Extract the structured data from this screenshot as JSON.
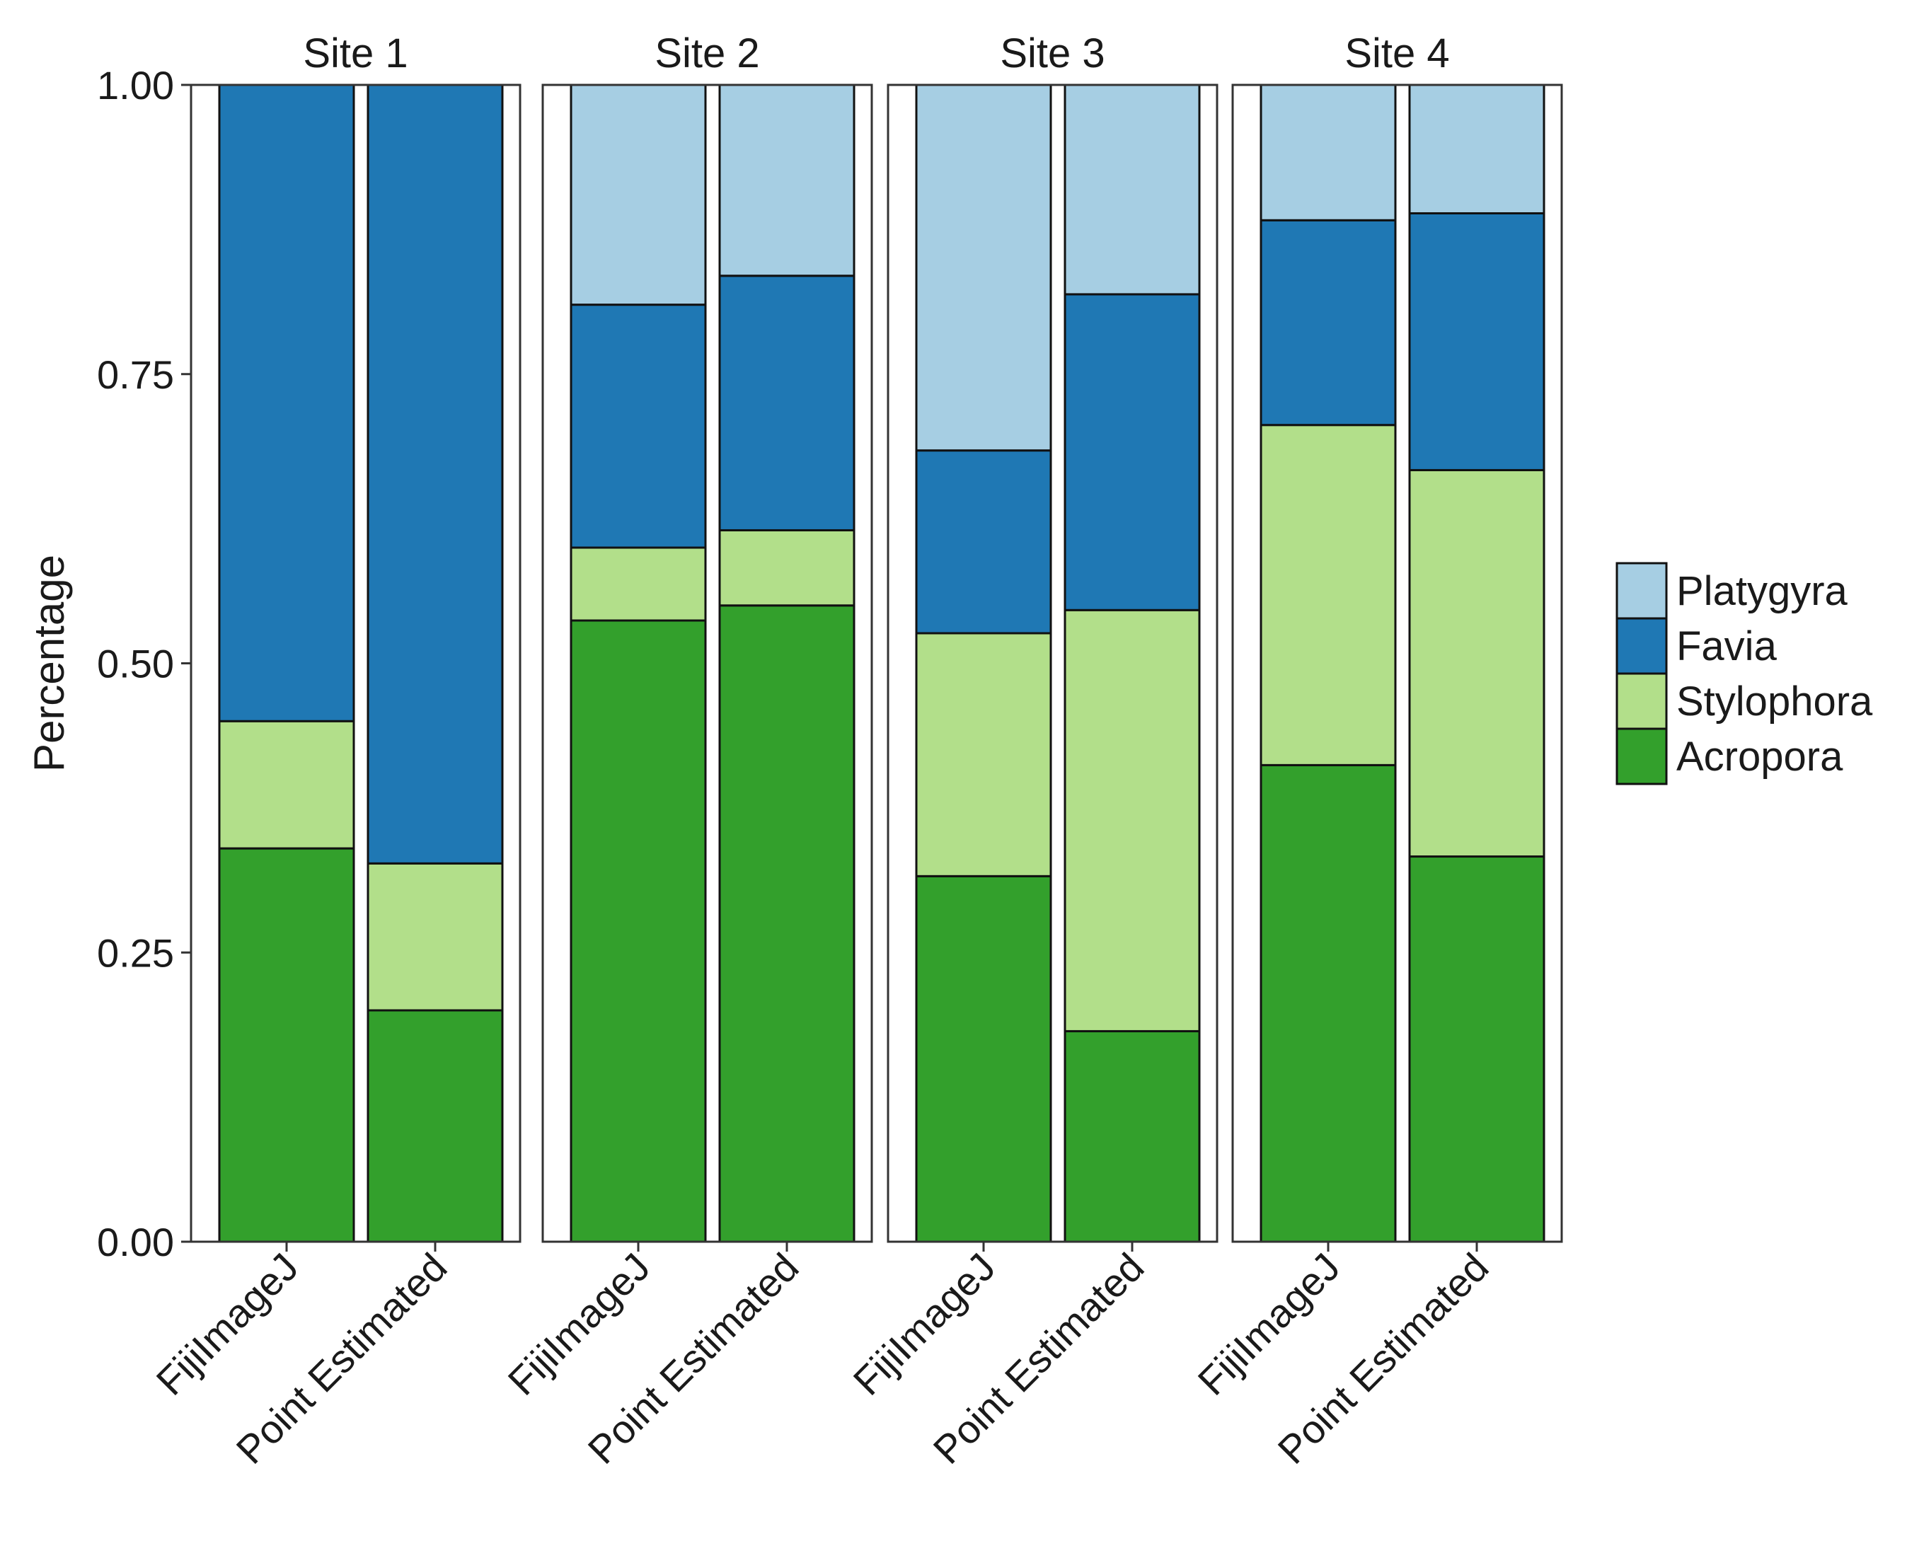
{
  "chart_data": {
    "type": "bar",
    "stacked": true,
    "faceted": true,
    "ylabel": "Percentage",
    "ylim": [
      0,
      1
    ],
    "yticks": [
      "0.00",
      "0.25",
      "0.50",
      "0.75",
      "1.00"
    ],
    "ytick_values": [
      0,
      0.25,
      0.5,
      0.75,
      1.0
    ],
    "categories": [
      "FijiImageJ",
      "Point Estimated"
    ],
    "facets": [
      {
        "label": "Site 1",
        "bars": [
          {
            "category": "FijiImageJ",
            "Acropora": 0.34,
            "Stylophora": 0.11,
            "Favia": 0.55,
            "Platygyra": 0.0
          },
          {
            "category": "Point Estimated",
            "Acropora": 0.2,
            "Stylophora": 0.127,
            "Favia": 0.673,
            "Platygyra": 0.0
          }
        ]
      },
      {
        "label": "Site 2",
        "bars": [
          {
            "category": "FijiImageJ",
            "Acropora": 0.537,
            "Stylophora": 0.063,
            "Favia": 0.21,
            "Platygyra": 0.19
          },
          {
            "category": "Point Estimated",
            "Acropora": 0.55,
            "Stylophora": 0.065,
            "Favia": 0.22,
            "Platygyra": 0.165
          }
        ]
      },
      {
        "label": "Site 3",
        "bars": [
          {
            "category": "FijiImageJ",
            "Acropora": 0.316,
            "Stylophora": 0.21,
            "Favia": 0.158,
            "Platygyra": 0.316
          },
          {
            "category": "Point Estimated",
            "Acropora": 0.182,
            "Stylophora": 0.364,
            "Favia": 0.273,
            "Platygyra": 0.181
          }
        ]
      },
      {
        "label": "Site 4",
        "bars": [
          {
            "category": "FijiImageJ",
            "Acropora": 0.412,
            "Stylophora": 0.294,
            "Favia": 0.177,
            "Platygyra": 0.117
          },
          {
            "category": "Point Estimated",
            "Acropora": 0.333,
            "Stylophora": 0.334,
            "Favia": 0.222,
            "Platygyra": 0.111
          }
        ]
      }
    ],
    "series": [
      {
        "name": "Acropora",
        "color": "#33a02c"
      },
      {
        "name": "Stylophora",
        "color": "#b2df8a"
      },
      {
        "name": "Favia",
        "color": "#1f78b4"
      },
      {
        "name": "Platygyra",
        "color": "#a6cee3"
      }
    ],
    "legend_order": [
      "Platygyra",
      "Favia",
      "Stylophora",
      "Acropora"
    ],
    "legend_position": "right",
    "grid": false
  }
}
